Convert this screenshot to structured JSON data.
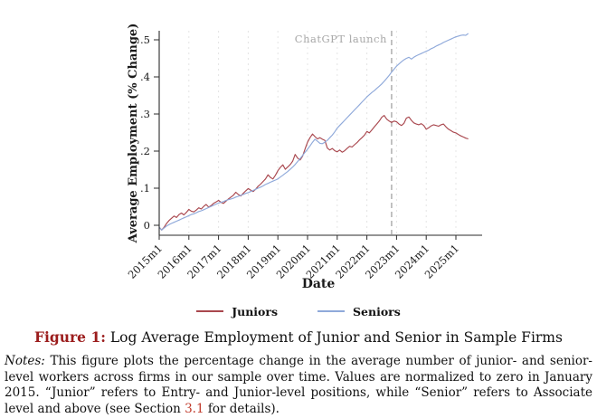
{
  "figure": {
    "caption_label": "Figure 1:",
    "caption_text": " Log Average Employment of Junior and Senior in Sample Firms",
    "notes_label": "Notes:",
    "notes_before_link": " This figure plots the percentage change in the average number of junior- and senior-level workers across firms in our sample over time. Values are normalized to zero in January 2015. “Junior” refers to Entry- and Junior-level positions, while “Senior” refers to Associate level and above (see Section ",
    "notes_link": "3.1",
    "notes_after_link": " for details)."
  },
  "colors": {
    "caption_label": "#9b1c1c",
    "link": "#c03a2b",
    "axis": "#2b2b2b",
    "gridline": "#e4e4e4",
    "launch_line": "#9a9a9a",
    "launch_label": "#a8a8a8"
  },
  "chart_data": {
    "type": "line",
    "title": "",
    "xlabel": "Date",
    "ylabel": "Average Employment (% Change)",
    "x_start": "2015m1",
    "x_frequency": "monthly",
    "x_tick_labels": [
      "2015m1",
      "2016m1",
      "2017m1",
      "2018m1",
      "2019m1",
      "2020m1",
      "2021m1",
      "2022m1",
      "2023m1",
      "2024m1",
      "2025m1"
    ],
    "y_ticks": [
      0,
      0.1,
      0.2,
      0.3,
      0.4,
      0.5
    ],
    "y_tick_labels": [
      "0",
      ".1",
      ".2",
      ".3",
      ".4",
      ".5"
    ],
    "ylim": [
      -0.03,
      0.55
    ],
    "grid": "vertical-dashed-per-year",
    "legend_position": "bottom-center",
    "annotation": {
      "label": "ChatGPT launch",
      "x": "2022m11",
      "month_index": 94,
      "style": "vertical-dashed-line"
    },
    "series": [
      {
        "name": "Juniors",
        "color": "#a9474e",
        "values": [
          -0.005,
          -0.013,
          -0.005,
          0.005,
          0.013,
          0.019,
          0.025,
          0.021,
          0.029,
          0.033,
          0.028,
          0.035,
          0.043,
          0.038,
          0.036,
          0.041,
          0.047,
          0.044,
          0.051,
          0.056,
          0.049,
          0.053,
          0.059,
          0.063,
          0.067,
          0.062,
          0.059,
          0.065,
          0.071,
          0.076,
          0.081,
          0.089,
          0.083,
          0.079,
          0.086,
          0.093,
          0.099,
          0.095,
          0.091,
          0.097,
          0.105,
          0.111,
          0.118,
          0.125,
          0.136,
          0.129,
          0.125,
          0.135,
          0.147,
          0.156,
          0.163,
          0.151,
          0.157,
          0.164,
          0.173,
          0.191,
          0.181,
          0.176,
          0.186,
          0.206,
          0.224,
          0.236,
          0.246,
          0.239,
          0.233,
          0.236,
          0.232,
          0.229,
          0.208,
          0.203,
          0.207,
          0.201,
          0.198,
          0.203,
          0.197,
          0.201,
          0.207,
          0.213,
          0.211,
          0.217,
          0.223,
          0.23,
          0.236,
          0.243,
          0.253,
          0.249,
          0.257,
          0.265,
          0.273,
          0.281,
          0.291,
          0.296,
          0.286,
          0.281,
          0.277,
          0.281,
          0.279,
          0.273,
          0.269,
          0.275,
          0.289,
          0.292,
          0.283,
          0.276,
          0.273,
          0.271,
          0.274,
          0.269,
          0.259,
          0.263,
          0.268,
          0.271,
          0.269,
          0.267,
          0.271,
          0.273,
          0.265,
          0.259,
          0.255,
          0.251,
          0.249,
          0.245,
          0.241,
          0.238,
          0.235,
          0.233
        ]
      },
      {
        "name": "Seniors",
        "color": "#8fa9da",
        "values": [
          -0.005,
          -0.013,
          -0.007,
          -0.002,
          0.002,
          0.005,
          0.008,
          0.011,
          0.014,
          0.017,
          0.02,
          0.023,
          0.026,
          0.029,
          0.031,
          0.034,
          0.037,
          0.039,
          0.042,
          0.045,
          0.048,
          0.051,
          0.054,
          0.057,
          0.06,
          0.062,
          0.064,
          0.067,
          0.069,
          0.071,
          0.073,
          0.076,
          0.078,
          0.081,
          0.083,
          0.086,
          0.088,
          0.091,
          0.094,
          0.097,
          0.1,
          0.103,
          0.106,
          0.11,
          0.113,
          0.116,
          0.119,
          0.122,
          0.125,
          0.13,
          0.135,
          0.14,
          0.145,
          0.151,
          0.157,
          0.164,
          0.172,
          0.18,
          0.188,
          0.197,
          0.205,
          0.214,
          0.224,
          0.232,
          0.227,
          0.221,
          0.22,
          0.224,
          0.229,
          0.236,
          0.243,
          0.252,
          0.262,
          0.269,
          0.276,
          0.283,
          0.29,
          0.297,
          0.304,
          0.311,
          0.318,
          0.325,
          0.332,
          0.339,
          0.346,
          0.352,
          0.358,
          0.363,
          0.369,
          0.375,
          0.381,
          0.388,
          0.396,
          0.404,
          0.413,
          0.421,
          0.429,
          0.435,
          0.441,
          0.446,
          0.45,
          0.453,
          0.448,
          0.453,
          0.457,
          0.46,
          0.463,
          0.466,
          0.469,
          0.472,
          0.476,
          0.479,
          0.483,
          0.486,
          0.489,
          0.493,
          0.496,
          0.499,
          0.502,
          0.505,
          0.508,
          0.51,
          0.512,
          0.513,
          0.512,
          0.517
        ]
      }
    ]
  }
}
